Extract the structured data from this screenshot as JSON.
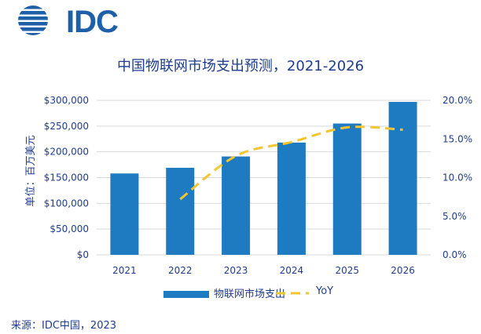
{
  "logo": {
    "text": "IDC"
  },
  "chart_data": {
    "type": "bar",
    "title": "中国物联网市场支出预测，2021-2026",
    "ylabel": "单位：百万美元",
    "categories": [
      "2021",
      "2022",
      "2023",
      "2024",
      "2025",
      "2026"
    ],
    "series": [
      {
        "name": "物联网市场支出",
        "type": "bar",
        "axis": "left",
        "values": [
          158000,
          169000,
          191000,
          218000,
          255000,
          297000
        ]
      },
      {
        "name": "YoY",
        "type": "line",
        "style": "dashed",
        "axis": "right",
        "values": [
          null,
          7.2,
          12.8,
          14.6,
          16.5,
          16.2
        ]
      }
    ],
    "y_left": {
      "min": 0,
      "max": 300000,
      "ticks": [
        "$0",
        "$50,000",
        "$100,000",
        "$150,000",
        "$200,000",
        "$250,000",
        "$300,000"
      ]
    },
    "y_right": {
      "min": 0,
      "max": 20,
      "ticks": [
        "0.0%",
        "5.0%",
        "10.0%",
        "15.0%",
        "20.0%"
      ]
    },
    "grid": true,
    "legend_position": "bottom",
    "colors": {
      "bar": "#1f7bc1",
      "line": "#f2c62f",
      "text": "#1f3d8c",
      "grid": "#d9d9d9",
      "logo": "#1f5fa8"
    }
  },
  "source": "来源：IDC中国，2023"
}
